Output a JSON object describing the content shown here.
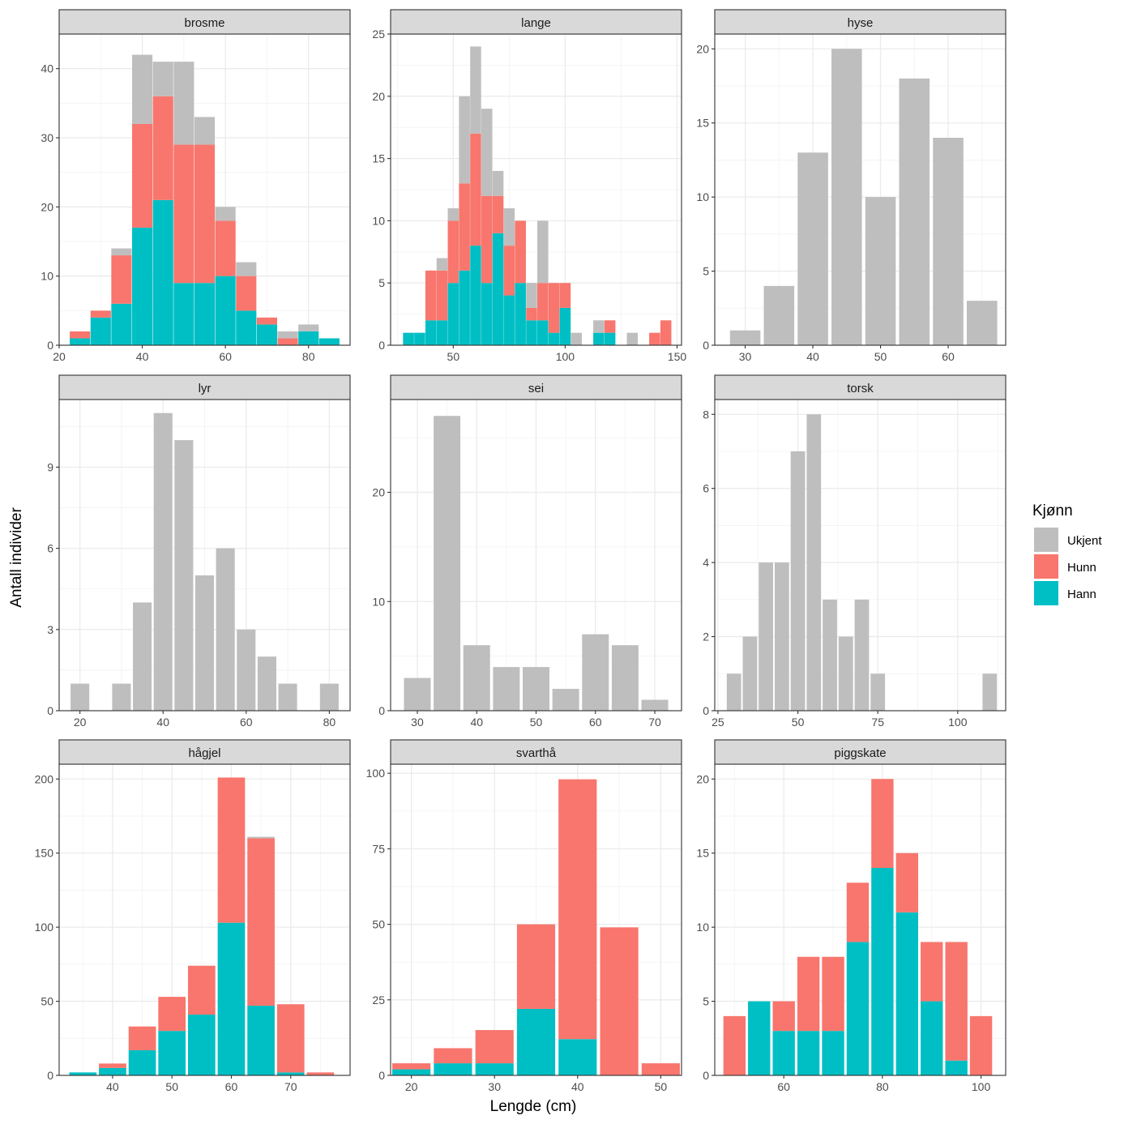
{
  "axis": {
    "xlabel": "Lengde (cm)",
    "ylabel": "Antall individer"
  },
  "legend": {
    "title": "Kjønn",
    "entries": [
      {
        "label": "Ukjent",
        "color": "#BEBEBE"
      },
      {
        "label": "Hunn",
        "color": "#F8766D"
      },
      {
        "label": "Hann",
        "color": "#00BFC4"
      }
    ]
  },
  "chart_data": [
    {
      "type": "bar",
      "stacked": true,
      "title": "brosme",
      "xlim": [
        20,
        90
      ],
      "ylim": [
        0,
        45
      ],
      "xticks": [
        20,
        40,
        60,
        80
      ],
      "yticks": [
        0,
        10,
        20,
        30,
        40
      ],
      "bar_width": 4.9,
      "x": [
        25,
        30,
        35,
        40,
        45,
        50,
        55,
        60,
        65,
        70,
        75,
        80,
        85
      ],
      "series": [
        {
          "name": "Hann",
          "values": [
            1,
            4,
            6,
            17,
            21,
            9,
            9,
            10,
            5,
            3,
            0,
            2,
            1
          ]
        },
        {
          "name": "Hunn",
          "values": [
            1,
            1,
            7,
            15,
            15,
            20,
            20,
            8,
            5,
            1,
            1,
            0,
            0
          ]
        },
        {
          "name": "Ukjent",
          "values": [
            0,
            0,
            1,
            10,
            5,
            12,
            4,
            2,
            2,
            0,
            1,
            1,
            0
          ]
        }
      ]
    },
    {
      "type": "bar",
      "stacked": true,
      "title": "lange",
      "xlim": [
        22,
        152
      ],
      "ylim": [
        0,
        25
      ],
      "xticks": [
        50,
        100,
        150
      ],
      "yticks": [
        0,
        5,
        10,
        15,
        20,
        25
      ],
      "bar_width": 4.9,
      "x": [
        30,
        35,
        40,
        45,
        50,
        55,
        60,
        65,
        70,
        75,
        80,
        85,
        90,
        95,
        100,
        105,
        110,
        115,
        120,
        125,
        130,
        135,
        140,
        145
      ],
      "series": [
        {
          "name": "Hann",
          "values": [
            1,
            1,
            2,
            2,
            5,
            6,
            8,
            5,
            9,
            4,
            5,
            2,
            2,
            1,
            3,
            0,
            0,
            1,
            1,
            0,
            0,
            0,
            0,
            0
          ]
        },
        {
          "name": "Hunn",
          "values": [
            0,
            0,
            4,
            4,
            5,
            7,
            9,
            7,
            3,
            4,
            5,
            1,
            3,
            4,
            2,
            0,
            0,
            0,
            1,
            0,
            0,
            0,
            1,
            2
          ]
        },
        {
          "name": "Ukjent",
          "values": [
            0,
            0,
            0,
            1,
            1,
            7,
            7,
            7,
            2,
            3,
            0,
            2,
            5,
            0,
            0,
            1,
            0,
            1,
            0,
            0,
            1,
            0,
            0,
            0
          ]
        }
      ]
    },
    {
      "type": "bar",
      "stacked": true,
      "title": "hyse",
      "xlim": [
        25.5,
        68.5
      ],
      "ylim": [
        0,
        21
      ],
      "xticks": [
        30,
        40,
        50,
        60
      ],
      "yticks": [
        0,
        5,
        10,
        15,
        20
      ],
      "bar_width": 4.5,
      "x": [
        30,
        35,
        40,
        45,
        50,
        55,
        60,
        65
      ],
      "series": [
        {
          "name": "Ukjent",
          "values": [
            1,
            4,
            13,
            20,
            10,
            18,
            14,
            3
          ]
        }
      ]
    },
    {
      "type": "bar",
      "stacked": true,
      "title": "lyr",
      "xlim": [
        15,
        85
      ],
      "ylim": [
        0,
        11.5
      ],
      "xticks": [
        20,
        40,
        60,
        80
      ],
      "yticks": [
        0,
        3,
        6,
        9
      ],
      "bar_width": 4.5,
      "x": [
        20,
        30,
        35,
        40,
        45,
        50,
        55,
        60,
        65,
        70,
        80
      ],
      "series": [
        {
          "name": "Ukjent",
          "values": [
            1,
            1,
            4,
            11,
            10,
            5,
            6,
            3,
            2,
            1,
            1
          ]
        }
      ]
    },
    {
      "type": "bar",
      "stacked": true,
      "title": "sei",
      "xlim": [
        25.5,
        74.5
      ],
      "ylim": [
        0,
        28.5
      ],
      "xticks": [
        30,
        40,
        50,
        60,
        70
      ],
      "yticks": [
        0,
        10,
        20
      ],
      "bar_width": 4.5,
      "x": [
        30,
        35,
        40,
        45,
        50,
        55,
        60,
        65,
        70
      ],
      "series": [
        {
          "name": "Ukjent",
          "values": [
            3,
            27,
            6,
            4,
            4,
            2,
            7,
            6,
            1
          ]
        }
      ]
    },
    {
      "type": "bar",
      "stacked": true,
      "title": "torsk",
      "xlim": [
        24,
        115
      ],
      "ylim": [
        0,
        8.4
      ],
      "xticks": [
        25,
        50,
        75,
        100
      ],
      "yticks": [
        0,
        2,
        4,
        6,
        8
      ],
      "bar_width": 4.5,
      "x": [
        30,
        35,
        40,
        45,
        50,
        55,
        60,
        65,
        70,
        75,
        110
      ],
      "series": [
        {
          "name": "Ukjent",
          "values": [
            1,
            2,
            4,
            4,
            7,
            8,
            3,
            2,
            3,
            1,
            1
          ]
        }
      ]
    },
    {
      "type": "bar",
      "stacked": true,
      "title": "hågjel",
      "xlim": [
        31,
        80
      ],
      "ylim": [
        0,
        210
      ],
      "xticks": [
        40,
        50,
        60,
        70
      ],
      "yticks": [
        0,
        50,
        100,
        150,
        200
      ],
      "bar_width": 4.6,
      "x": [
        35,
        40,
        45,
        50,
        55,
        60,
        65,
        70,
        75
      ],
      "series": [
        {
          "name": "Hann",
          "values": [
            2,
            5,
            17,
            30,
            41,
            103,
            47,
            2,
            0
          ]
        },
        {
          "name": "Hunn",
          "values": [
            0,
            3,
            16,
            23,
            33,
            98,
            113,
            46,
            2
          ]
        },
        {
          "name": "Ukjent",
          "values": [
            0,
            0,
            0,
            0,
            0,
            0,
            1,
            0,
            0
          ]
        }
      ]
    },
    {
      "type": "bar",
      "stacked": true,
      "title": "svarthå",
      "xlim": [
        17.5,
        52.5
      ],
      "ylim": [
        0,
        103
      ],
      "xticks": [
        20,
        30,
        40,
        50
      ],
      "yticks": [
        0,
        25,
        50,
        75,
        100
      ],
      "bar_width": 4.6,
      "x": [
        20,
        25,
        30,
        35,
        40,
        45,
        50
      ],
      "series": [
        {
          "name": "Hann",
          "values": [
            2,
            4,
            4,
            22,
            12,
            0,
            0
          ]
        },
        {
          "name": "Hunn",
          "values": [
            2,
            5,
            11,
            28,
            86,
            49,
            4
          ]
        }
      ]
    },
    {
      "type": "bar",
      "stacked": true,
      "title": "piggskate",
      "xlim": [
        46,
        105
      ],
      "ylim": [
        0,
        21
      ],
      "xticks": [
        60,
        80,
        100
      ],
      "yticks": [
        0,
        5,
        10,
        15,
        20
      ],
      "bar_width": 4.5,
      "x": [
        50,
        55,
        60,
        65,
        70,
        75,
        80,
        85,
        90,
        95,
        100
      ],
      "series": [
        {
          "name": "Hann",
          "values": [
            0,
            5,
            3,
            3,
            3,
            9,
            14,
            11,
            5,
            1,
            0
          ]
        },
        {
          "name": "Hunn",
          "values": [
            4,
            0,
            2,
            5,
            5,
            4,
            6,
            4,
            4,
            8,
            4
          ]
        }
      ]
    }
  ]
}
